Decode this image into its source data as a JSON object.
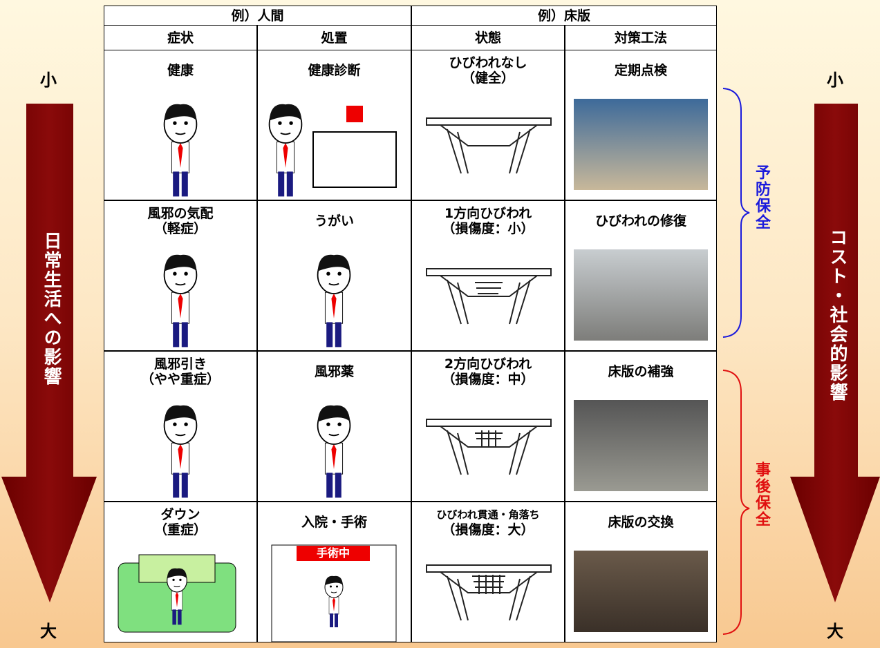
{
  "table": {
    "group_headers": [
      "例）人間",
      "例）床版"
    ],
    "column_headers": [
      "症状",
      "処置",
      "状態",
      "対策工法"
    ],
    "rows": [
      [
        [
          "健康"
        ],
        [
          "健康診断"
        ],
        [
          "ひびわれなし",
          "（健全）"
        ],
        [
          "定期点検"
        ]
      ],
      [
        [
          "風邪の気配",
          "（軽症）"
        ],
        [
          "うがい"
        ],
        [
          "1方向ひびわれ",
          "（損傷度：小）"
        ],
        [
          "ひびわれの修復"
        ]
      ],
      [
        [
          "風邪引き",
          "（やや重症）"
        ],
        [
          "風邪薬"
        ],
        [
          "2方向ひびわれ",
          "（損傷度：中）"
        ],
        [
          "床版の補強"
        ]
      ],
      [
        [
          "ダウン",
          "（重症）"
        ],
        [
          "入院・手術"
        ],
        [
          "ひびわれ貫通・角落ち",
          "（損傷度：大）"
        ],
        [
          "床版の交換"
        ]
      ]
    ],
    "badge": "手術中"
  },
  "left_axis": {
    "label": "日常生活への影響",
    "top": "小",
    "bottom": "大"
  },
  "right_axis": {
    "label": "コスト・社会的影響",
    "top": "小",
    "bottom": "大"
  },
  "brackets": [
    "予防保全",
    "事後保全"
  ]
}
